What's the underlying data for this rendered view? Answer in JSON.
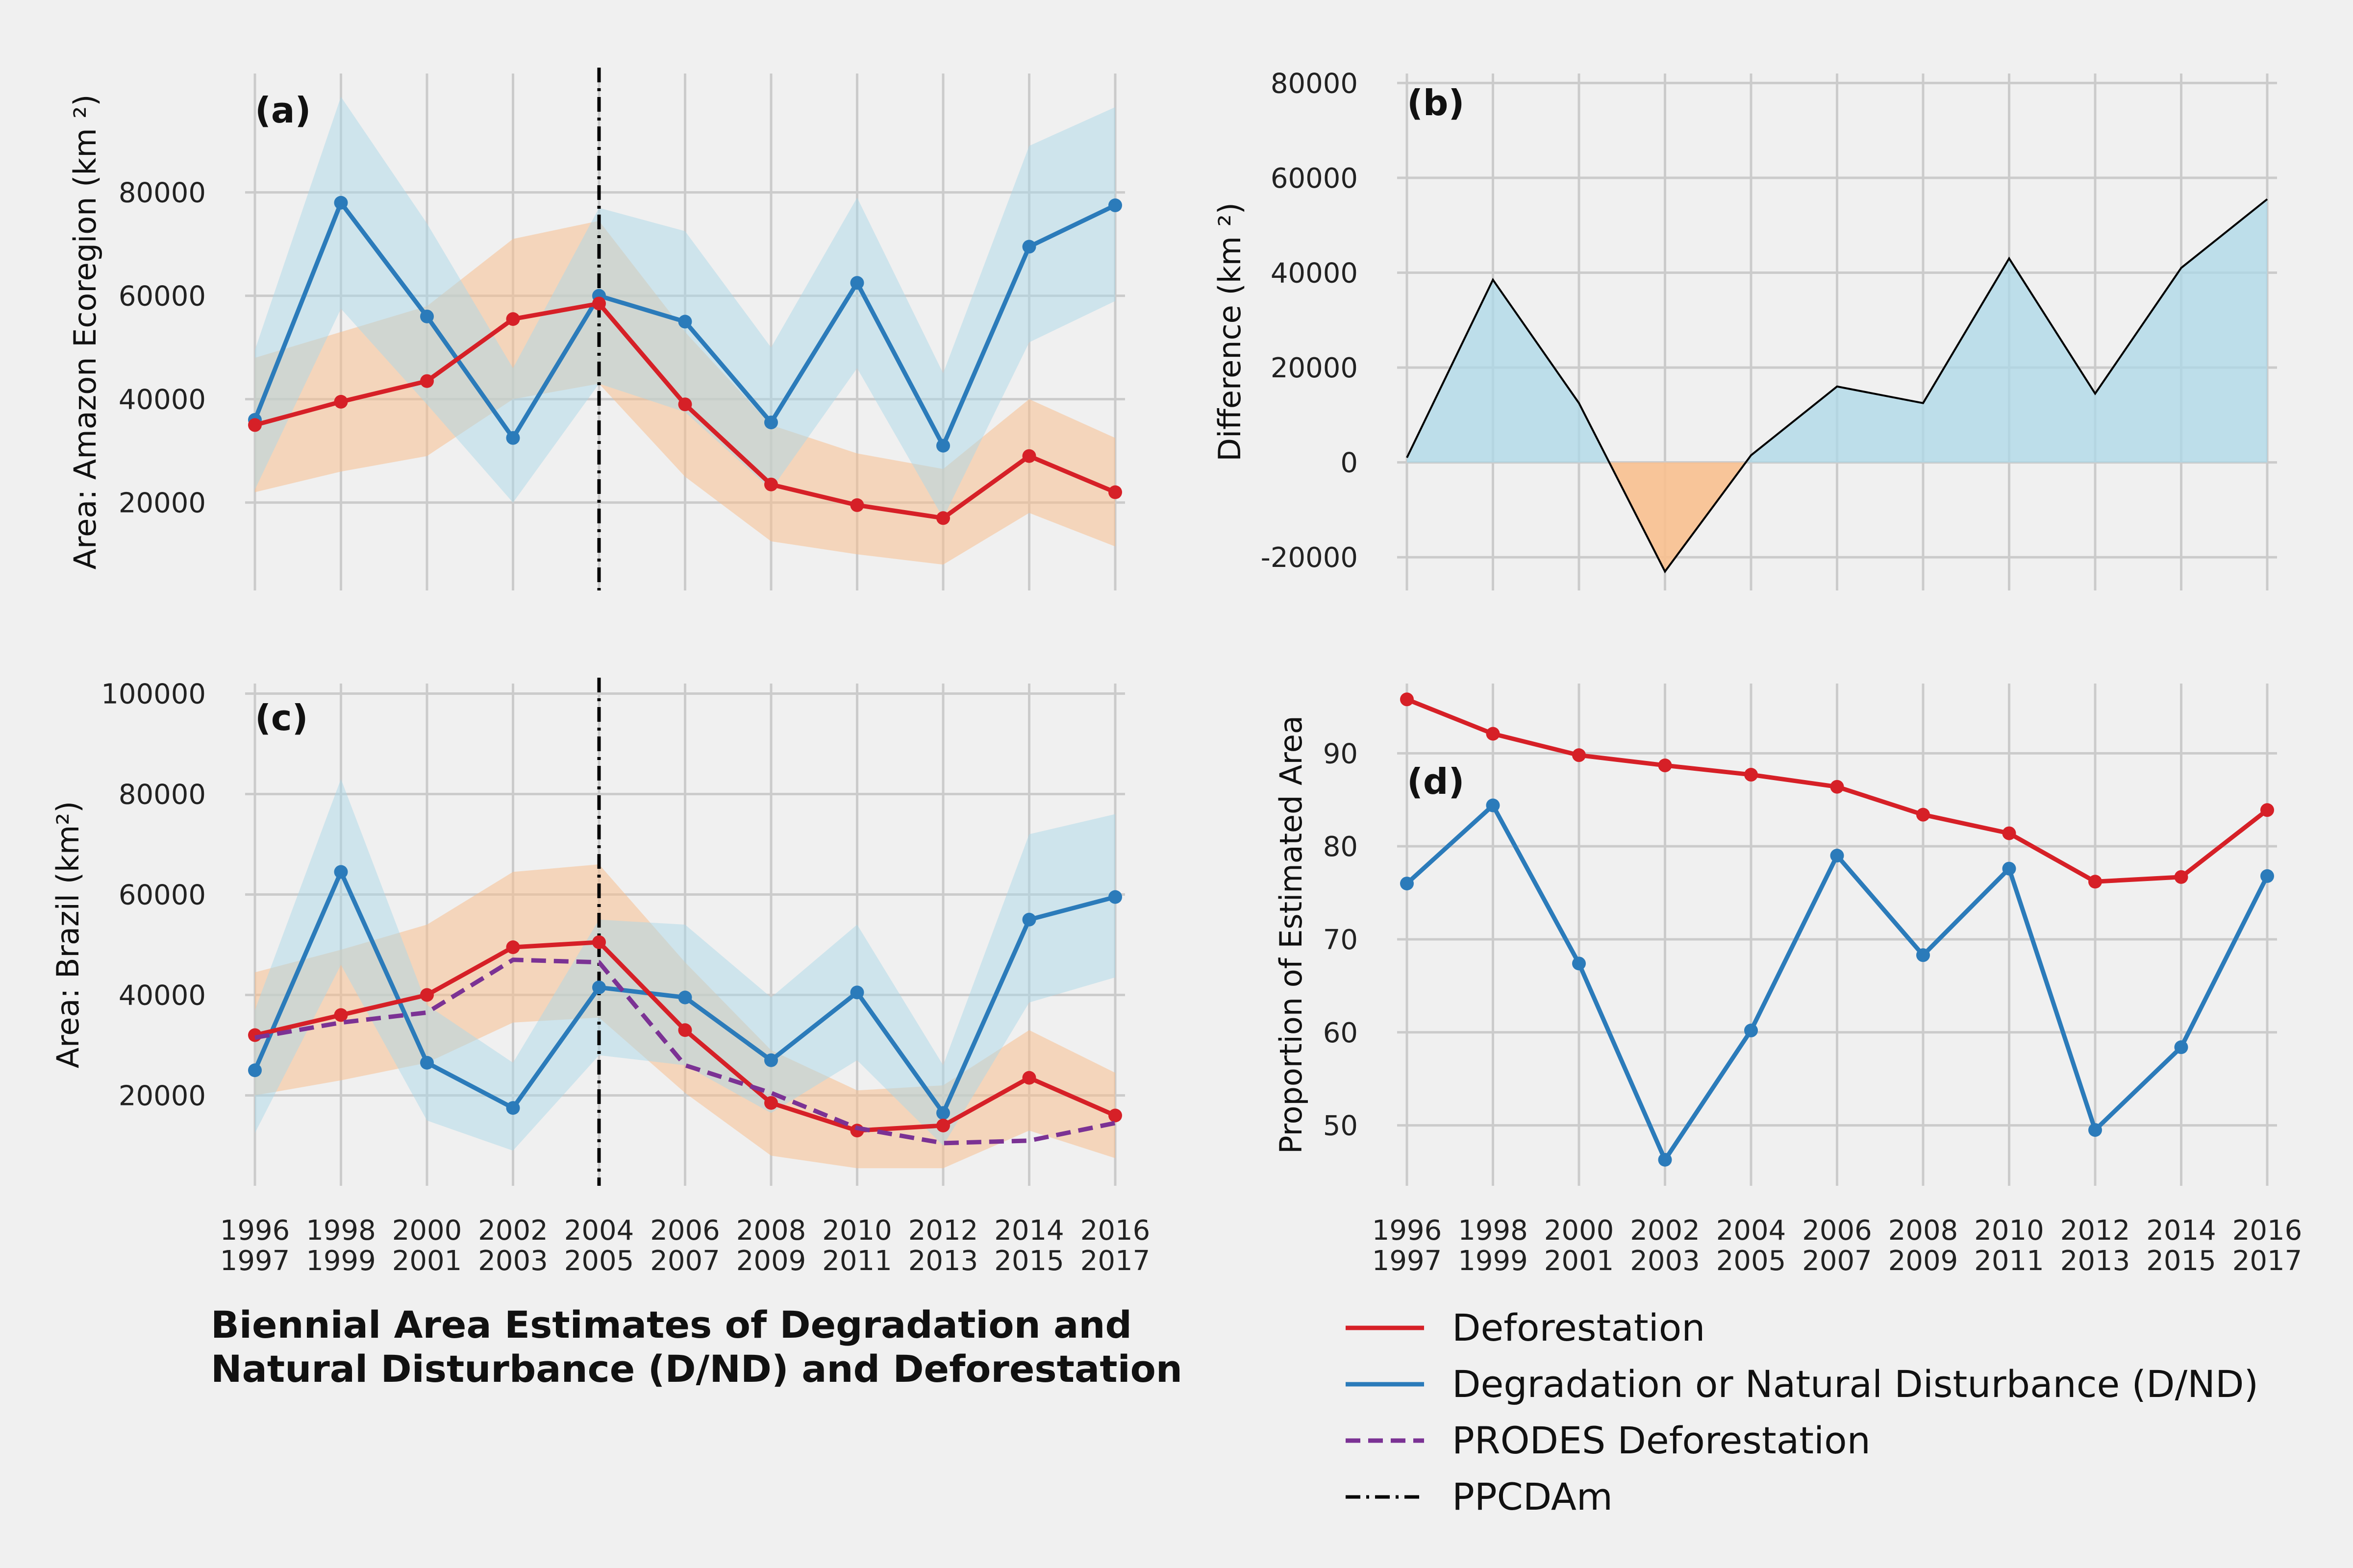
{
  "x_ticks": [
    [
      "1996",
      "1997"
    ],
    [
      "1998",
      "1999"
    ],
    [
      "2000",
      "2001"
    ],
    [
      "2002",
      "2003"
    ],
    [
      "2004",
      "2005"
    ],
    [
      "2006",
      "2007"
    ],
    [
      "2008",
      "2009"
    ],
    [
      "2010",
      "2011"
    ],
    [
      "2012",
      "2013"
    ],
    [
      "2014",
      "2015"
    ],
    [
      "2016",
      "2017"
    ]
  ],
  "colors": {
    "deforestation": "#d62027",
    "dnd": "#2b7bba",
    "prodes": "#7b3294",
    "ppcdam": "#000000",
    "band_deforestation": "#f8c08f",
    "band_dnd": "#acd8e8",
    "grid": "#cbcbcb",
    "background": "#f0f0f0"
  },
  "caption": [
    "Biennial Area Estimates of Degradation and",
    "Natural Disturbance (D/ND) and Deforestation"
  ],
  "legend": [
    {
      "label": "Deforestation",
      "style": "solid",
      "color_key": "deforestation"
    },
    {
      "label": "Degradation or Natural Disturbance (D/ND)",
      "style": "solid",
      "color_key": "dnd"
    },
    {
      "label": "PRODES Deforestation",
      "style": "dashed",
      "color_key": "prodes"
    },
    {
      "label": "PPCDAm",
      "style": "dashdot",
      "color_key": "ppcdam"
    }
  ],
  "chart_data": [
    {
      "panel": "(a)",
      "type": "line",
      "ylabel": "Area: Amazon Ecoregion (km ²)",
      "ylim": [
        3000,
        103000
      ],
      "yticks": [
        20000,
        40000,
        60000,
        80000
      ],
      "ppcdam_at_index": 4,
      "grid": true,
      "series": [
        {
          "key": "deforestation",
          "values": [
            35000,
            39500,
            43500,
            55500,
            58500,
            39000,
            23500,
            19500,
            17000,
            29000,
            22000
          ],
          "lower": [
            22000,
            26000,
            29000,
            40000,
            43000,
            25000,
            12500,
            10000,
            8000,
            18000,
            11500
          ],
          "upper": [
            48000,
            53000,
            58000,
            71000,
            74500,
            53000,
            35000,
            29500,
            26500,
            40000,
            32500
          ]
        },
        {
          "key": "dnd",
          "values": [
            36000,
            78000,
            56000,
            32500,
            60000,
            55000,
            35500,
            62500,
            31000,
            69500,
            77500
          ],
          "lower": [
            22500,
            57500,
            39000,
            20000,
            43000,
            37500,
            22500,
            46000,
            17000,
            51000,
            59000
          ],
          "upper": [
            49500,
            98500,
            74000,
            46000,
            77000,
            72500,
            50000,
            79000,
            45000,
            89000,
            96500
          ]
        }
      ]
    },
    {
      "panel": "(b)",
      "type": "area",
      "ylabel": "Difference (km ²)",
      "ylim": [
        -27000,
        82000
      ],
      "yticks": [
        -20000,
        0,
        20000,
        40000,
        60000,
        80000
      ],
      "grid": true,
      "series": [
        {
          "key": "difference",
          "values": [
            1000,
            38500,
            12500,
            -23000,
            1500,
            16000,
            12500,
            43000,
            14500,
            41000,
            55500
          ]
        }
      ]
    },
    {
      "panel": "(c)",
      "type": "line",
      "ylabel": "Area: Brazil (km²)",
      "ylim": [
        2000,
        102000
      ],
      "yticks": [
        20000,
        40000,
        60000,
        80000,
        100000
      ],
      "ppcdam_at_index": 4,
      "grid": true,
      "series": [
        {
          "key": "deforestation",
          "values": [
            32000,
            36000,
            40000,
            49500,
            50500,
            33000,
            18500,
            13000,
            14000,
            23500,
            16000
          ],
          "lower": [
            20000,
            23000,
            26500,
            34500,
            35500,
            20500,
            8000,
            5500,
            5500,
            13000,
            7500
          ],
          "upper": [
            44500,
            49000,
            54000,
            64500,
            66000,
            46500,
            29000,
            21000,
            22000,
            33000,
            24500
          ]
        },
        {
          "key": "dnd",
          "values": [
            25000,
            64500,
            26500,
            17500,
            41500,
            39500,
            27000,
            40500,
            16500,
            55000,
            59500
          ],
          "lower": [
            12500,
            46000,
            15000,
            9000,
            28000,
            26000,
            16500,
            27000,
            10000,
            38500,
            43500
          ],
          "upper": [
            37000,
            83000,
            38000,
            26500,
            55000,
            54000,
            39500,
            54000,
            26000,
            72000,
            76000
          ]
        },
        {
          "key": "prodes",
          "values": [
            31500,
            34500,
            36500,
            47000,
            46500,
            26000,
            20500,
            13500,
            10500,
            11000,
            14500
          ]
        }
      ]
    },
    {
      "panel": "(d)",
      "type": "line",
      "ylabel": "Proportion of Estimated Area",
      "ylim": [
        43.5,
        97.5
      ],
      "yticks": [
        50,
        60,
        70,
        80,
        90
      ],
      "grid": true,
      "series": [
        {
          "key": "deforestation",
          "values": [
            95.8,
            92.1,
            89.8,
            88.7,
            87.7,
            86.4,
            83.4,
            81.4,
            76.2,
            76.7,
            83.9
          ]
        },
        {
          "key": "dnd",
          "values": [
            76.0,
            84.4,
            67.4,
            46.3,
            60.2,
            79.0,
            68.3,
            77.6,
            49.5,
            58.4,
            76.8
          ]
        }
      ]
    }
  ]
}
